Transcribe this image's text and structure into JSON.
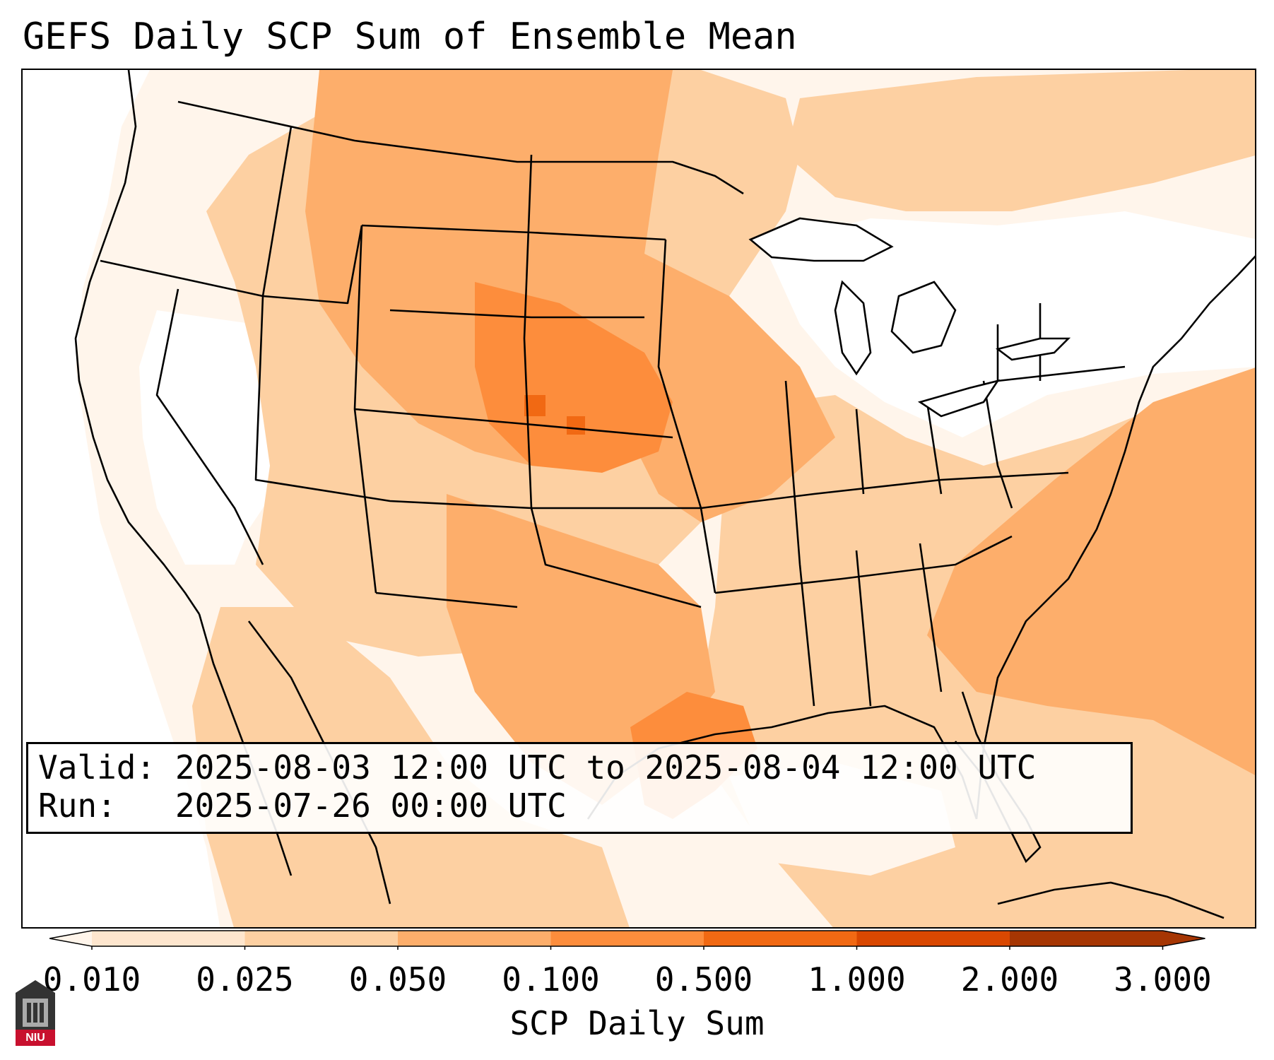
{
  "title": "GEFS Daily SCP Sum of Ensemble Mean",
  "info_box": {
    "valid_label": "Valid:",
    "valid_value": "2025-08-03 12:00 UTC to 2025-08-04 12:00 UTC",
    "run_label": "Run:",
    "run_value": "2025-07-26 00:00 UTC"
  },
  "colorbar": {
    "label": "SCP Daily Sum",
    "ticks": [
      "0.010",
      "0.025",
      "0.050",
      "0.100",
      "0.500",
      "1.000",
      "2.000",
      "3.000"
    ],
    "colors": [
      "#fff5eb",
      "#fee6ce",
      "#fdd0a2",
      "#fdae6b",
      "#fd8d3c",
      "#f16913",
      "#d94801",
      "#a63603"
    ],
    "extend": "both"
  },
  "logo": {
    "text": "NIU"
  },
  "map_colors": {
    "white": "#ffffff",
    "level_1": "#fff5eb",
    "level_2": "#fee6ce",
    "level_3": "#fdd0a2",
    "level_4": "#fdae6b",
    "level_5": "#fd8d3c",
    "level_6": "#f16913"
  }
}
